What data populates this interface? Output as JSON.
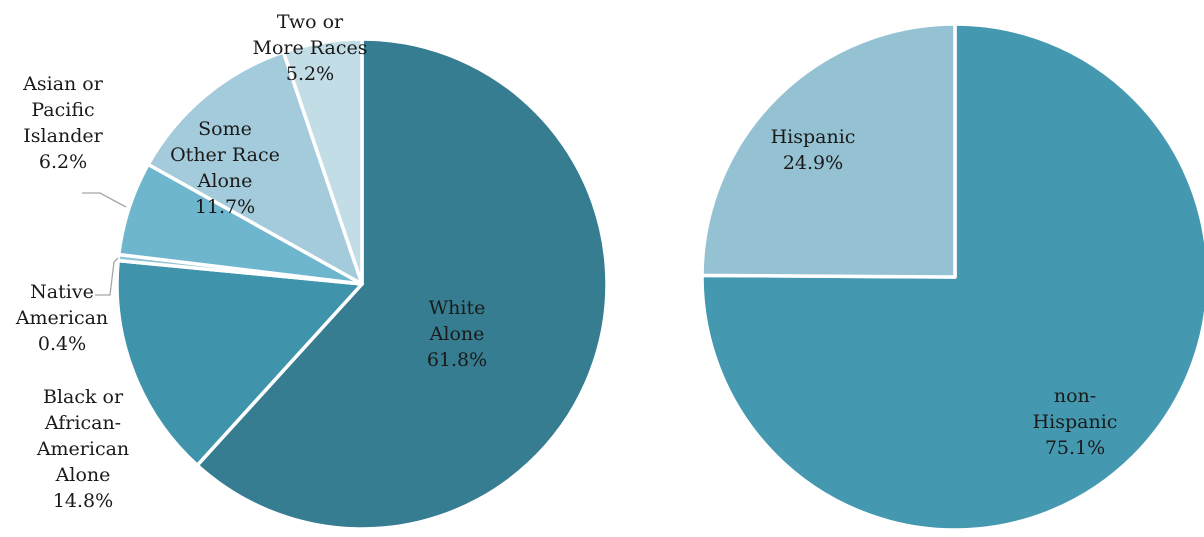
{
  "chart_data": [
    {
      "type": "pie",
      "title": "",
      "slices": [
        {
          "label": [
            "White",
            "Alone"
          ],
          "value": 61.8,
          "value_label": "61.8%",
          "color": "#367d91"
        },
        {
          "label": [
            "Black or",
            "African-",
            "American",
            "Alone"
          ],
          "value": 14.8,
          "value_label": "14.8%",
          "color": "#3f94ab"
        },
        {
          "label": [
            "Native",
            "American"
          ],
          "value": 0.4,
          "value_label": "0.4%",
          "color": "#8dc4d6"
        },
        {
          "label": [
            "Asian or",
            "Pacific",
            "Islander"
          ],
          "value": 6.2,
          "value_label": "6.2%",
          "color": "#6eb6cd"
        },
        {
          "label": [
            "Some",
            "Other Race",
            "Alone"
          ],
          "value": 11.7,
          "value_label": "11.7%",
          "color": "#a4cbdb"
        },
        {
          "label": [
            "Two or",
            "More Races"
          ],
          "value": 5.2,
          "value_label": "5.2%",
          "color": "#c3dde7"
        }
      ]
    },
    {
      "type": "pie",
      "title": "",
      "slices": [
        {
          "label": [
            "non-",
            "Hispanic"
          ],
          "value": 75.1,
          "value_label": "75.1%",
          "color": "#4499b0"
        },
        {
          "label": [
            "Hispanic"
          ],
          "value": 24.9,
          "value_label": "24.9%",
          "color": "#94c2d3"
        }
      ]
    }
  ]
}
